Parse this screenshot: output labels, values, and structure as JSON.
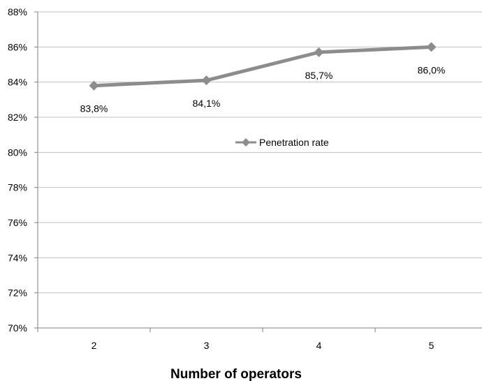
{
  "chart_data": {
    "type": "line",
    "categories": [
      "2",
      "3",
      "4",
      "5"
    ],
    "series": [
      {
        "name": "Penetration rate",
        "values": [
          83.8,
          84.1,
          85.7,
          86.0
        ],
        "labels": [
          "83,8%",
          "84,1%",
          "85,7%",
          "86,0%"
        ],
        "color": "#8c8c8c"
      }
    ],
    "xlabel": "Number of operators",
    "ylabel": "",
    "ylim": [
      70,
      88
    ],
    "yticks": [
      70,
      72,
      74,
      76,
      78,
      80,
      82,
      84,
      86,
      88
    ],
    "ytick_labels": [
      "70%",
      "72%",
      "74%",
      "76%",
      "78%",
      "80%",
      "82%",
      "84%",
      "86%",
      "88%"
    ],
    "grid": true,
    "legend_position": "center-right"
  },
  "colors": {
    "grid": "#bfbfbf",
    "axis": "#808080",
    "series": "#8c8c8c"
  }
}
